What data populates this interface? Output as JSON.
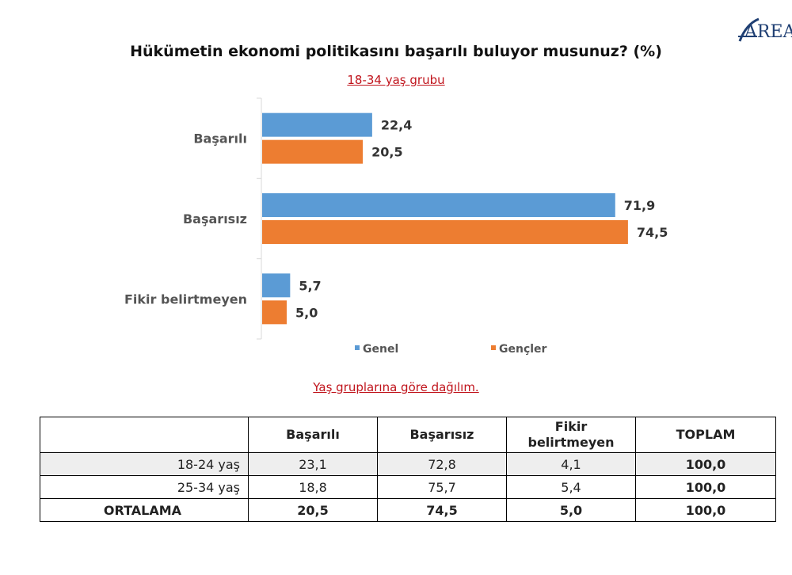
{
  "logo": {
    "text": "AREA"
  },
  "chart_data": {
    "type": "bar",
    "orientation": "horizontal",
    "title": "Hükümetin ekonomi politikasını başarılı buluyor musunuz? (%)",
    "subtitle": "18-34 yaş grubu",
    "categories": [
      "Başarılı",
      "Başarısız",
      "Fikir belirtmeyen"
    ],
    "series": [
      {
        "name": "Genel",
        "values": [
          22.4,
          71.9,
          5.7
        ],
        "labels": [
          "22,4",
          "71,9",
          "5,7"
        ],
        "color": "#5b9bd5"
      },
      {
        "name": "Gençler",
        "values": [
          20.5,
          74.5,
          5.0
        ],
        "labels": [
          "20,5",
          "74,5",
          "5,0"
        ],
        "color": "#ed7d31"
      }
    ],
    "xlim": [
      0,
      80
    ],
    "grid": false,
    "legend": "bottom"
  },
  "table": {
    "caption": "Yaş gruplarına göre dağılım.",
    "headers": [
      "",
      "Başarılı",
      "Başarısız",
      "Fikir belirtmeyen",
      "TOPLAM"
    ],
    "rows": [
      [
        "18-24 yaş",
        "23,1",
        "72,8",
        "4,1",
        "100,0"
      ],
      [
        "25-34 yaş",
        "18,8",
        "75,7",
        "5,4",
        "100,0"
      ],
      [
        "ORTALAMA",
        "20,5",
        "74,5",
        "5,0",
        "100,0"
      ]
    ]
  }
}
